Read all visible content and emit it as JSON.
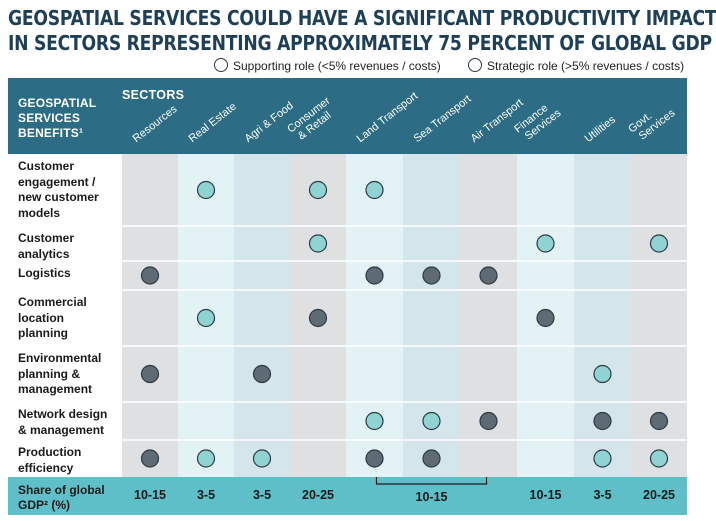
{
  "title_line1": "GEOSPATIAL SERVICES COULD HAVE A SIGNIFICANT PRODUCTIVITY IMPACT",
  "title_line2": "IN SECTORS REPRESENTING APPROXIMATELY 75 PERCENT OF GLOBAL GDP",
  "legend": {
    "supporting": "Supporting role (<5% revenues / costs)",
    "strategic": "Strategic role (>5% revenues / costs)"
  },
  "colors": {
    "header_bg": "#2c6c84",
    "share_bg": "#5fbfc8",
    "supporting_dot": "#5f6b74",
    "strategic_dot": "#8fd3d3",
    "col_grey": "#dfe0e2",
    "col_light": "#e3f3f5",
    "col_blue": "#d5e5ec"
  },
  "header": {
    "benefits_label_lines": [
      "GEOSPATIAL",
      "SERVICES",
      "BENEFITS¹"
    ],
    "sectors_label": "SECTORS"
  },
  "share_label_lines": [
    "Share of global",
    "GDP² (%)"
  ],
  "chart_data": {
    "type": "table",
    "columns": [
      {
        "lines": [
          "Resources"
        ]
      },
      {
        "lines": [
          "Real Estate"
        ]
      },
      {
        "lines": [
          "Agri & Food"
        ]
      },
      {
        "lines": [
          "Consumer",
          "& Retail"
        ]
      },
      {
        "lines": [
          "Land Transport"
        ]
      },
      {
        "lines": [
          "Sea Transport"
        ]
      },
      {
        "lines": [
          "Air Transport"
        ]
      },
      {
        "lines": [
          "Finance",
          "Services"
        ]
      },
      {
        "lines": [
          "Utilities"
        ]
      },
      {
        "lines": [
          "Govt.",
          "Services"
        ]
      }
    ],
    "rows": [
      {
        "lines": [
          "Customer",
          "engagement /",
          "new customer",
          "models"
        ],
        "cells": [
          null,
          "strategic",
          null,
          "strategic",
          "strategic",
          null,
          null,
          null,
          null,
          null
        ]
      },
      {
        "lines": [
          "Customer",
          "analytics"
        ],
        "cells": [
          null,
          null,
          null,
          "strategic",
          null,
          null,
          null,
          "strategic",
          null,
          "strategic"
        ]
      },
      {
        "lines": [
          "Logistics"
        ],
        "cells": [
          "supporting",
          null,
          null,
          null,
          "supporting",
          "supporting",
          "supporting",
          null,
          null,
          null
        ]
      },
      {
        "lines": [
          "Commercial",
          "location",
          "planning"
        ],
        "cells": [
          null,
          "strategic",
          null,
          "supporting",
          null,
          null,
          null,
          "supporting",
          null,
          null
        ]
      },
      {
        "lines": [
          "Environmental",
          "planning &",
          "management"
        ],
        "cells": [
          "supporting",
          null,
          "supporting",
          null,
          null,
          null,
          null,
          null,
          "strategic",
          null
        ]
      },
      {
        "lines": [
          "Network design",
          "& management"
        ],
        "cells": [
          null,
          null,
          null,
          null,
          "strategic",
          "strategic",
          "supporting",
          null,
          "supporting",
          "supporting"
        ]
      },
      {
        "lines": [
          "Production",
          "efficiency"
        ],
        "cells": [
          "supporting",
          "strategic",
          "strategic",
          null,
          "supporting",
          "supporting",
          null,
          null,
          "strategic",
          "strategic"
        ]
      }
    ],
    "share_of_gdp": [
      {
        "value": "10-15",
        "span": [
          0,
          0
        ]
      },
      {
        "value": "3-5",
        "span": [
          1,
          1
        ]
      },
      {
        "value": "3-5",
        "span": [
          2,
          2
        ]
      },
      {
        "value": "20-25",
        "span": [
          3,
          3
        ]
      },
      {
        "value": "10-15",
        "span": [
          4,
          6
        ]
      },
      {
        "value": "10-15",
        "span": [
          7,
          7
        ]
      },
      {
        "value": "3-5",
        "span": [
          8,
          8
        ]
      },
      {
        "value": "20-25",
        "span": [
          9,
          9
        ]
      }
    ]
  }
}
